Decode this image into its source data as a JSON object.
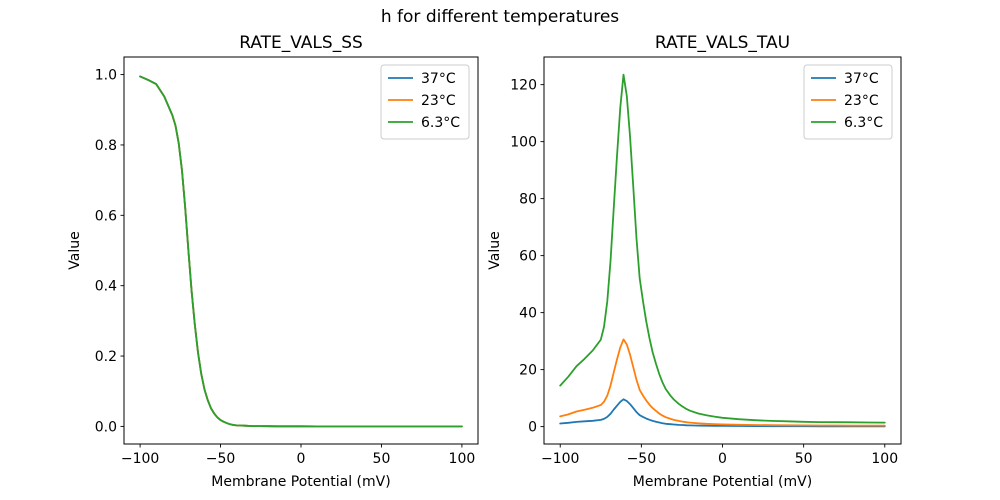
{
  "figure": {
    "title": "h for different temperatures",
    "background": "#ffffff"
  },
  "chart_data": [
    {
      "type": "line",
      "title": "RATE_VALS_SS",
      "xlabel": "Membrane Potential (mV)",
      "ylabel": "Value",
      "xlim": [
        -110,
        110
      ],
      "ylim": [
        -0.05,
        1.05
      ],
      "grid": false,
      "legend_position": "upper right",
      "note": "All three temperature curves overlap exactly; only the last-drawn green curve is visible.",
      "xticks": {
        "values": [
          -100,
          -50,
          0,
          50,
          100
        ],
        "labels": [
          "−100",
          "−50",
          "0",
          "50",
          "100"
        ]
      },
      "yticks": {
        "values": [
          0.0,
          0.2,
          0.4,
          0.6,
          0.8,
          1.0
        ],
        "labels": [
          "0.0",
          "0.2",
          "0.4",
          "0.6",
          "0.8",
          "1.0"
        ]
      },
      "x": [
        -100,
        -95,
        -90,
        -85,
        -80,
        -78,
        -76,
        -74,
        -72,
        -70,
        -68,
        -66,
        -64,
        -62,
        -60,
        -58,
        -56,
        -54,
        -52,
        -50,
        -48,
        -46,
        -44,
        -42,
        -40,
        -35,
        -30,
        -25,
        -20,
        -15,
        -10,
        -5,
        0,
        10,
        20,
        30,
        40,
        50,
        60,
        70,
        80,
        90,
        100
      ],
      "series": [
        {
          "name": "37°C",
          "color": "#1f77b4",
          "values": [
            0.995,
            0.985,
            0.973,
            0.938,
            0.885,
            0.855,
            0.805,
            0.73,
            0.625,
            0.5,
            0.385,
            0.29,
            0.21,
            0.15,
            0.105,
            0.075,
            0.052,
            0.037,
            0.026,
            0.018,
            0.013,
            0.009,
            0.006,
            0.004,
            0.003,
            0.002,
            0.001,
            0.001,
            0.0005,
            0.0004,
            0.0003,
            0.0002,
            0.0002,
            0.0001,
            0.0001,
            0,
            0,
            0,
            0,
            0,
            0,
            0,
            0
          ]
        },
        {
          "name": "23°C",
          "color": "#ff7f0e",
          "values": [
            0.995,
            0.985,
            0.973,
            0.938,
            0.885,
            0.855,
            0.805,
            0.73,
            0.625,
            0.5,
            0.385,
            0.29,
            0.21,
            0.15,
            0.105,
            0.075,
            0.052,
            0.037,
            0.026,
            0.018,
            0.013,
            0.009,
            0.006,
            0.004,
            0.003,
            0.002,
            0.001,
            0.001,
            0.0005,
            0.0004,
            0.0003,
            0.0002,
            0.0002,
            0.0001,
            0.0001,
            0,
            0,
            0,
            0,
            0,
            0,
            0,
            0
          ]
        },
        {
          "name": "6.3°C",
          "color": "#2ca02c",
          "values": [
            0.995,
            0.985,
            0.973,
            0.938,
            0.885,
            0.855,
            0.805,
            0.73,
            0.625,
            0.5,
            0.385,
            0.29,
            0.21,
            0.15,
            0.105,
            0.075,
            0.052,
            0.037,
            0.026,
            0.018,
            0.013,
            0.009,
            0.006,
            0.004,
            0.003,
            0.002,
            0.001,
            0.001,
            0.0005,
            0.0004,
            0.0003,
            0.0002,
            0.0002,
            0.0001,
            0.0001,
            0,
            0,
            0,
            0,
            0,
            0,
            0,
            0
          ]
        }
      ]
    },
    {
      "type": "line",
      "title": "RATE_VALS_TAU",
      "xlabel": "Membrane Potential (mV)",
      "ylabel": "Value",
      "xlim": [
        -110,
        110
      ],
      "ylim": [
        -6.1,
        129.7
      ],
      "grid": false,
      "legend_position": "upper right",
      "note": "Peaked curves near V = −61 mV; peaks approx 9.6 (37°C), 30.6 (23°C), 123.5 (6.3°C).",
      "xticks": {
        "values": [
          -100,
          -50,
          0,
          50,
          100
        ],
        "labels": [
          "−100",
          "−50",
          "0",
          "50",
          "100"
        ]
      },
      "yticks": {
        "values": [
          0,
          20,
          40,
          60,
          80,
          100,
          120
        ],
        "labels": [
          "0",
          "20",
          "40",
          "60",
          "80",
          "100",
          "120"
        ]
      },
      "x": [
        -100,
        -95,
        -90,
        -85,
        -80,
        -75,
        -73,
        -71,
        -69,
        -67,
        -65,
        -63,
        -61,
        -59,
        -57,
        -55,
        -53,
        -51,
        -49,
        -47,
        -45,
        -43,
        -41,
        -39,
        -37,
        -35,
        -32,
        -30,
        -27,
        -25,
        -22,
        -20,
        -15,
        -10,
        -5,
        0,
        10,
        20,
        30,
        40,
        50,
        60,
        70,
        80,
        90,
        100
      ],
      "series": [
        {
          "name": "37°C",
          "color": "#1f77b4",
          "values": [
            1.1,
            1.35,
            1.65,
            1.85,
            2.05,
            2.35,
            2.7,
            3.4,
            4.5,
            6.0,
            7.35,
            8.7,
            9.6,
            9.0,
            7.9,
            6.5,
            5.1,
            4.0,
            3.4,
            2.85,
            2.4,
            2.0,
            1.7,
            1.45,
            1.2,
            1.0,
            0.85,
            0.75,
            0.6,
            0.55,
            0.47,
            0.43,
            0.36,
            0.31,
            0.27,
            0.24,
            0.2,
            0.17,
            0.16,
            0.14,
            0.13,
            0.12,
            0.12,
            0.12,
            0.11,
            0.11
          ]
        },
        {
          "name": "23°C",
          "color": "#ff7f0e",
          "values": [
            3.6,
            4.3,
            5.3,
            5.9,
            6.6,
            7.6,
            8.7,
            10.9,
            14.4,
            19.1,
            23.6,
            27.8,
            30.6,
            28.8,
            25.3,
            20.8,
            16.4,
            12.9,
            10.9,
            9.2,
            7.7,
            6.5,
            5.5,
            4.6,
            3.85,
            3.3,
            2.7,
            2.35,
            2.0,
            1.8,
            1.5,
            1.4,
            1.15,
            1.0,
            0.87,
            0.77,
            0.65,
            0.56,
            0.5,
            0.46,
            0.42,
            0.4,
            0.38,
            0.37,
            0.36,
            0.35
          ]
        },
        {
          "name": "6.3°C",
          "color": "#2ca02c",
          "values": [
            14.4,
            17.5,
            21.2,
            23.8,
            26.7,
            30.5,
            35,
            44,
            58,
            77,
            95,
            112,
            123.5,
            116,
            102,
            84,
            66,
            52,
            44,
            37,
            31,
            26,
            22,
            18.5,
            15.5,
            13.2,
            10.8,
            9.5,
            8.0,
            7.2,
            6.1,
            5.6,
            4.6,
            4.0,
            3.5,
            3.1,
            2.6,
            2.25,
            2.0,
            1.85,
            1.7,
            1.6,
            1.55,
            1.5,
            1.45,
            1.4
          ]
        }
      ]
    }
  ]
}
